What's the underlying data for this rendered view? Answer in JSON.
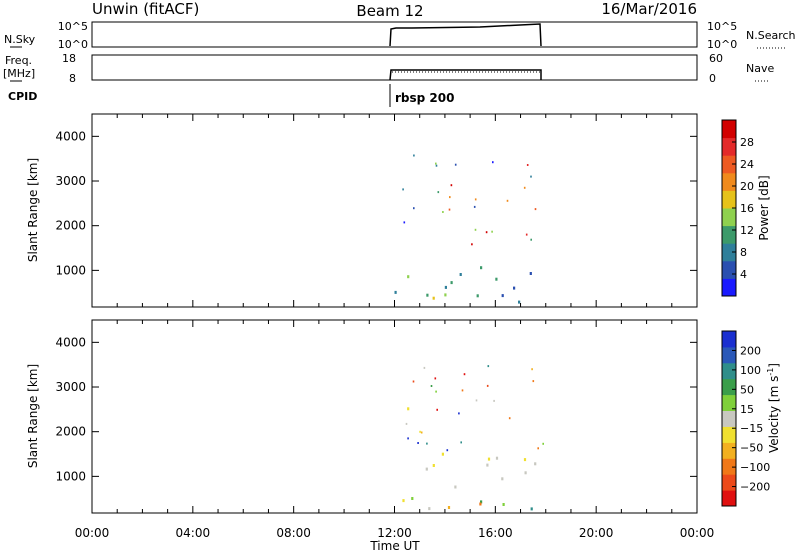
{
  "header": {
    "site": "Unwin (fitACF)",
    "beam": "Beam 12",
    "date": "16/Mar/2016"
  },
  "top_panels": {
    "nsky_label": "N.Sky",
    "nsky_ticks": [
      "10^5",
      "10^0"
    ],
    "nsearch_label": "N.Search",
    "nsearch_ticks": [
      "10^5",
      "10^0"
    ],
    "freq_label": "Freq.",
    "freq_unit": "[MHz]",
    "freq_ticks": [
      "18",
      "8"
    ],
    "nave_label": "Nave",
    "nave_ticks": [
      "60",
      "0"
    ],
    "cpid_label": "CPID",
    "cpid_value": "rbsp 200"
  },
  "chart_data": [
    {
      "type": "heatmap",
      "name": "power",
      "ylabel": "Slant Range [km]",
      "yticks": [
        1000,
        2000,
        3000,
        4000
      ],
      "ylim": [
        180,
        4500
      ],
      "xlabel": "Time UT",
      "xticks": [
        "00:00",
        "04:00",
        "08:00",
        "12:00",
        "16:00",
        "20:00",
        "00:00"
      ],
      "xlim_hours": [
        0,
        24
      ],
      "data_window_hours": [
        12,
        18
      ],
      "colorbar": {
        "label": "Power [dB]",
        "ticks": [
          "4",
          "8",
          "12",
          "16",
          "20",
          "24",
          "28"
        ],
        "colors": [
          "#1a1aff",
          "#2a4fb0",
          "#2f7f9a",
          "#3c9a6a",
          "#8fd14f",
          "#e6c21a",
          "#f08a1c",
          "#ee5a22",
          "#e42a2a",
          "#d20000"
        ]
      }
    },
    {
      "type": "heatmap",
      "name": "velocity",
      "ylabel": "Slant Range [km]",
      "yticks": [
        1000,
        2000,
        3000,
        4000
      ],
      "ylim": [
        180,
        4500
      ],
      "xlabel": "Time UT",
      "xticks": [
        "00:00",
        "04:00",
        "08:00",
        "12:00",
        "16:00",
        "20:00",
        "00:00"
      ],
      "xlim_hours": [
        0,
        24
      ],
      "data_window_hours": [
        12,
        18
      ],
      "colorbar": {
        "label": "Velocity [m s^-1]",
        "ticks": [
          "200",
          "100",
          "50",
          "15",
          "−15",
          "−50",
          "−100",
          "−200"
        ],
        "colors": [
          "#1a2fd0",
          "#2a58b8",
          "#2f8e8a",
          "#3a9e4a",
          "#7fd03a",
          "#c8c8c0",
          "#f0e030",
          "#f2b020",
          "#f07818",
          "#ec4a1a",
          "#e01010"
        ]
      }
    }
  ]
}
